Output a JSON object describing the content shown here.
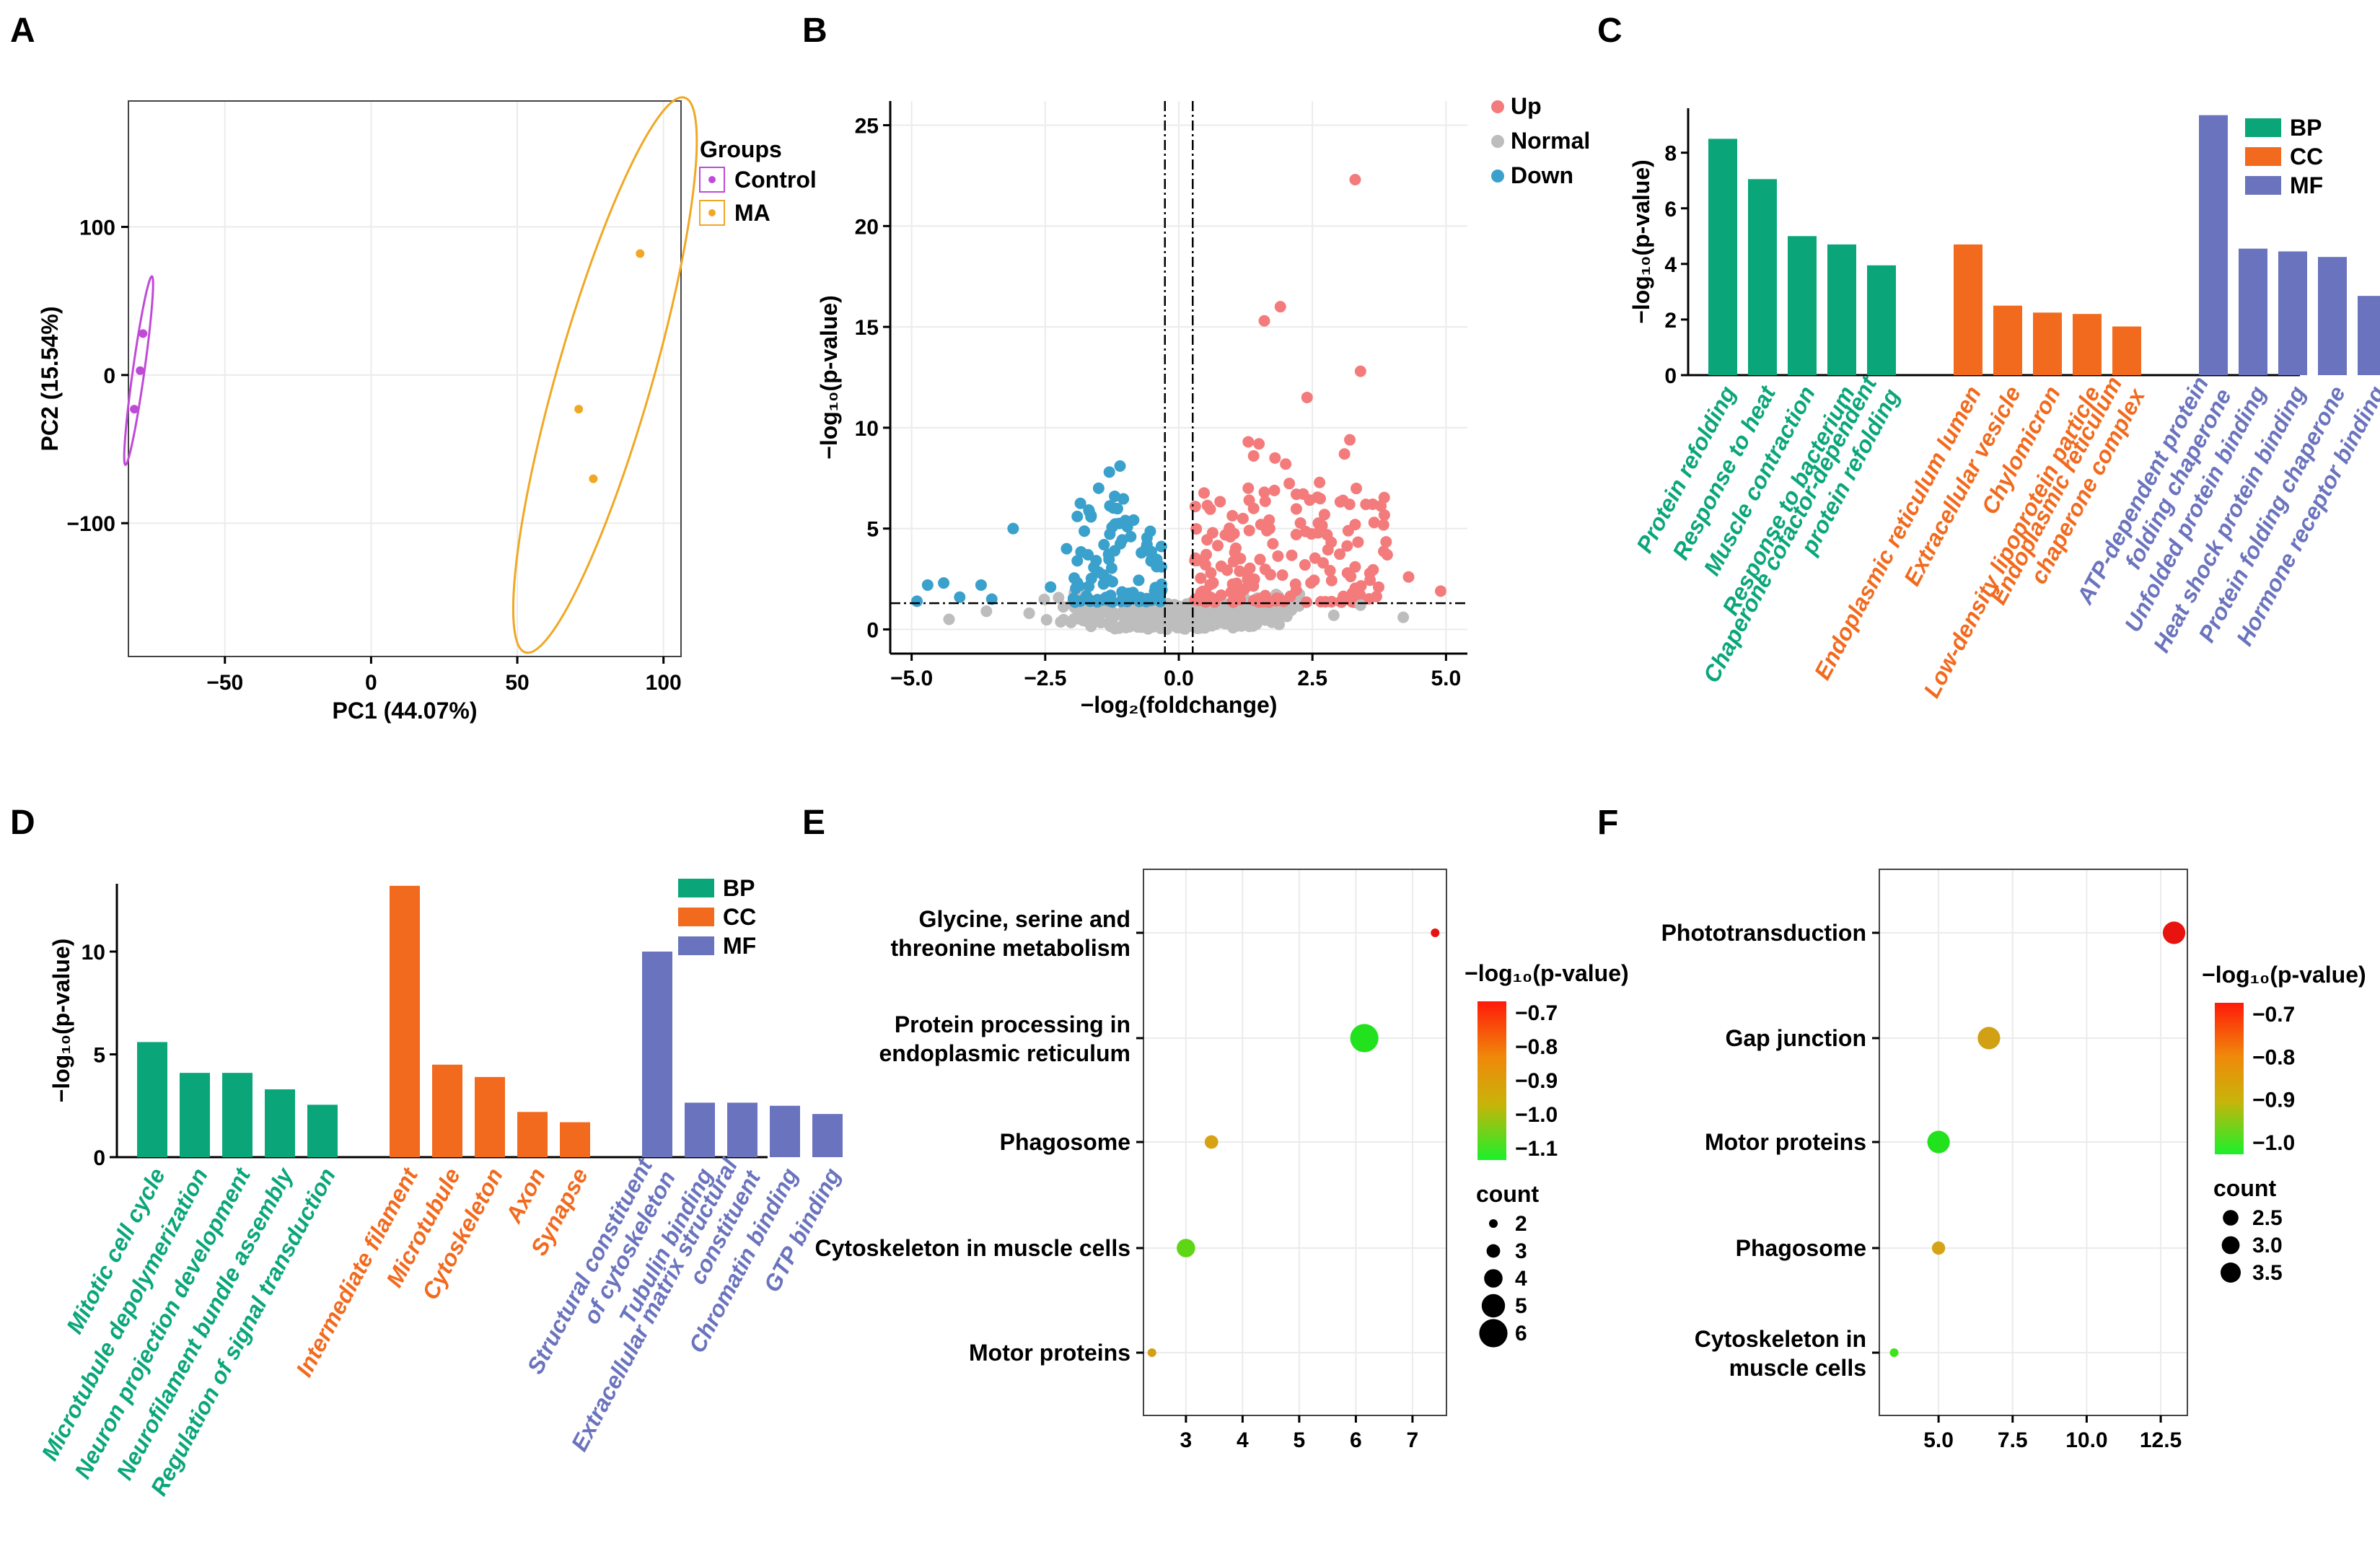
{
  "panels": [
    "A",
    "B",
    "C",
    "D",
    "E",
    "F"
  ],
  "colors": {
    "bp": "#0aa67a",
    "cc": "#f26a1e",
    "mf": "#6a73bd",
    "up": "#f47b7b",
    "normal": "#bdbdbd",
    "down": "#3aa0cc",
    "control": "#c04ad8",
    "ma": "#f0a824"
  },
  "chart_data": [
    {
      "panel": "A",
      "type": "scatter",
      "xlabel": "PC1 (44.07%)",
      "ylabel": "PC2 (15.54%)",
      "xlim": [
        -83,
        106
      ],
      "ylim": [
        -190,
        185
      ],
      "xticks": [
        "−50",
        "0",
        "50",
        "100"
      ],
      "yticks": [
        "−100",
        "0",
        "100"
      ],
      "legend_title": "Groups",
      "series": [
        {
          "name": "Control",
          "color": "#c04ad8",
          "points": [
            [
              -78,
              28
            ],
            [
              -79,
              3
            ],
            [
              -81,
              -23
            ]
          ]
        },
        {
          "name": "MA",
          "color": "#f0a824",
          "points": [
            [
              92,
              82
            ],
            [
              71,
              -23
            ],
            [
              76,
              -70
            ]
          ]
        }
      ]
    },
    {
      "panel": "B",
      "type": "scatter",
      "xlabel": "−log₂(foldchange)",
      "ylabel": "−log₁₀(p-value)",
      "xlim": [
        -5.4,
        5.4
      ],
      "ylim": [
        -1.2,
        26.2
      ],
      "xticks": [
        "−5.0",
        "−2.5",
        "0.0",
        "2.5",
        "5.0"
      ],
      "yticks": [
        "0",
        "5",
        "10",
        "15",
        "20",
        "25"
      ],
      "legend": [
        "Up",
        "Normal",
        "Down"
      ],
      "thresholds": {
        "fc": [
          -0.26,
          0.26
        ],
        "p": 1.3
      },
      "highlight_up": [
        [
          3.3,
          22.3
        ],
        [
          1.9,
          16.0
        ],
        [
          1.6,
          15.3
        ],
        [
          3.4,
          12.8
        ],
        [
          2.4,
          11.5
        ],
        [
          1.3,
          9.3
        ],
        [
          1.5,
          9.2
        ],
        [
          3.2,
          9.4
        ],
        [
          1.4,
          8.6
        ],
        [
          1.8,
          8.5
        ],
        [
          2.0,
          8.2
        ],
        [
          3.1,
          8.7
        ],
        [
          1.3,
          7.0
        ],
        [
          1.6,
          6.8
        ],
        [
          2.2,
          6.7
        ],
        [
          3.5,
          6.2
        ],
        [
          1.4,
          6.0
        ],
        [
          3.3,
          5.2
        ],
        [
          1.2,
          5.5
        ],
        [
          1.7,
          5.0
        ],
        [
          3.9,
          3.7
        ],
        [
          4.3,
          2.6
        ],
        [
          4.9,
          1.9
        ],
        [
          0.6,
          2.8
        ],
        [
          3.3,
          3.1
        ],
        [
          2.7,
          3.3
        ]
      ],
      "highlight_down": [
        [
          -1.1,
          8.1
        ],
        [
          -1.3,
          7.8
        ],
        [
          -1.5,
          7.0
        ],
        [
          -1.2,
          6.6
        ],
        [
          -3.1,
          5.0
        ],
        [
          -1.9,
          5.6
        ],
        [
          -2.1,
          4.0
        ],
        [
          -4.7,
          2.2
        ],
        [
          -4.4,
          2.3
        ],
        [
          -3.7,
          2.2
        ],
        [
          -4.1,
          1.6
        ],
        [
          -3.5,
          1.5
        ],
        [
          -2.4,
          2.1
        ],
        [
          -4.9,
          1.4
        ],
        [
          -1.9,
          3.4
        ],
        [
          -0.9,
          4.6
        ],
        [
          -0.7,
          3.8
        ],
        [
          -1.0,
          5.4
        ],
        [
          -1.4,
          4.2
        ],
        [
          -1.7,
          3.7
        ]
      ],
      "highlight_normal": [
        [
          -4.3,
          0.5
        ],
        [
          -3.6,
          0.9
        ],
        [
          4.2,
          0.6
        ],
        [
          3.4,
          1.2
        ],
        [
          -2.8,
          0.8
        ],
        [
          2.9,
          0.7
        ]
      ]
    },
    {
      "panel": "C",
      "type": "bar",
      "ylabel": "−log₁₀(p-value)",
      "ylim": [
        0,
        9.6
      ],
      "yticks": [
        "0",
        "2",
        "4",
        "6",
        "8"
      ],
      "legend": [
        "BP",
        "CC",
        "MF"
      ],
      "groups": [
        {
          "name": "BP",
          "color": "#0aa67a",
          "categories": [
            "Protein refolding",
            "Response to heat",
            "Muscle contraction",
            "Response to bacterium",
            "Chaperone cofactor-dependent protein refolding"
          ],
          "values": [
            8.5,
            7.05,
            5.0,
            4.7,
            3.95
          ]
        },
        {
          "name": "CC",
          "color": "#f26a1e",
          "categories": [
            "Endoplasmic reticulum lumen",
            "Extracellular vesicle",
            "Chylomicron",
            "Low-density lipoprotein particle",
            "Endoplasmic reticulum chaperone complex"
          ],
          "values": [
            4.7,
            2.5,
            2.25,
            2.2,
            1.75
          ]
        },
        {
          "name": "MF",
          "color": "#6a73bd",
          "categories": [
            "ATP-dependent protein folding chaperone",
            "Unfolded protein binding",
            "Heat shock protein binding",
            "Protein folding chaperone",
            "Hormone receptor binding"
          ],
          "values": [
            9.35,
            4.55,
            4.45,
            4.25,
            2.85
          ]
        }
      ]
    },
    {
      "panel": "D",
      "type": "bar",
      "ylabel": "−log₁₀(p-value)",
      "ylim": [
        0,
        13.3
      ],
      "yticks": [
        "0",
        "5",
        "10"
      ],
      "legend": [
        "BP",
        "CC",
        "MF"
      ],
      "groups": [
        {
          "name": "BP",
          "color": "#0aa67a",
          "categories": [
            "Mitotic cell cycle",
            "Microtubule depolymerization",
            "Neuron projection development",
            "Neurofilament bundle assembly",
            "Regulation of signal transduction"
          ],
          "values": [
            5.6,
            4.1,
            4.1,
            3.3,
            2.55
          ]
        },
        {
          "name": "CC",
          "color": "#f26a1e",
          "categories": [
            "Intermediate filament",
            "Microtubule",
            "Cytoskeleton",
            "Axon",
            "Synapse"
          ],
          "values": [
            13.2,
            4.5,
            3.9,
            2.2,
            1.7
          ]
        },
        {
          "name": "MF",
          "color": "#6a73bd",
          "categories": [
            "Structural constituent of cytoskeleton",
            "Tubulin binding",
            "Extracellular matrix structural constituent",
            "Chromatin binding",
            "GTP binding"
          ],
          "values": [
            10.0,
            2.65,
            2.65,
            2.5,
            2.1
          ]
        }
      ]
    },
    {
      "panel": "E",
      "type": "scatter",
      "xlim": [
        2.25,
        7.6
      ],
      "xticks": [
        "3",
        "4",
        "5",
        "6",
        "7"
      ],
      "color_title": "−log₁₀(p-value)",
      "color_ticks": [
        "−0.7",
        "−0.8",
        "−0.9",
        "−1.0",
        "−1.1"
      ],
      "size_title": "count",
      "size_ticks": [
        "2",
        "3",
        "4",
        "5",
        "6"
      ],
      "pathways": [
        {
          "name": [
            "Glycine, serine and",
            "threonine metabolism"
          ],
          "x": 7.4,
          "count": 2,
          "color": "#e8130f"
        },
        {
          "name": [
            "Protein processing in",
            "endoplasmic reticulum"
          ],
          "x": 6.15,
          "count": 6,
          "color": "#21e21d"
        },
        {
          "name": [
            "Phagosome"
          ],
          "x": 3.45,
          "count": 3,
          "color": "#d7a314"
        },
        {
          "name": [
            "Cytoskeleton in muscle cells"
          ],
          "x": 3.0,
          "count": 4,
          "color": "#5ed615"
        },
        {
          "name": [
            "Motor proteins"
          ],
          "x": 2.4,
          "count": 2,
          "color": "#d3a016"
        }
      ]
    },
    {
      "panel": "F",
      "type": "scatter",
      "xlim": [
        3.0,
        13.4
      ],
      "xticks": [
        "5.0",
        "7.5",
        "10.0",
        "12.5"
      ],
      "color_title": "−log₁₀(p-value)",
      "color_ticks": [
        "−0.7",
        "−0.8",
        "−0.9",
        "−1.0"
      ],
      "size_title": "count",
      "size_ticks": [
        "2.5",
        "3.0",
        "3.5"
      ],
      "pathways": [
        {
          "name": [
            "Phototransduction"
          ],
          "x": 12.95,
          "count": 4,
          "color": "#e8130f"
        },
        {
          "name": [
            "Gap junction"
          ],
          "x": 6.7,
          "count": 4,
          "color": "#d1a015"
        },
        {
          "name": [
            "Motor proteins"
          ],
          "x": 5.0,
          "count": 4,
          "color": "#21e21d"
        },
        {
          "name": [
            "Phagosome"
          ],
          "x": 5.0,
          "count": 2,
          "color": "#d5a316"
        },
        {
          "name": [
            "Cytoskeleton in",
            "muscle cells"
          ],
          "x": 3.5,
          "count": 1,
          "color": "#3fe31a"
        }
      ]
    }
  ]
}
